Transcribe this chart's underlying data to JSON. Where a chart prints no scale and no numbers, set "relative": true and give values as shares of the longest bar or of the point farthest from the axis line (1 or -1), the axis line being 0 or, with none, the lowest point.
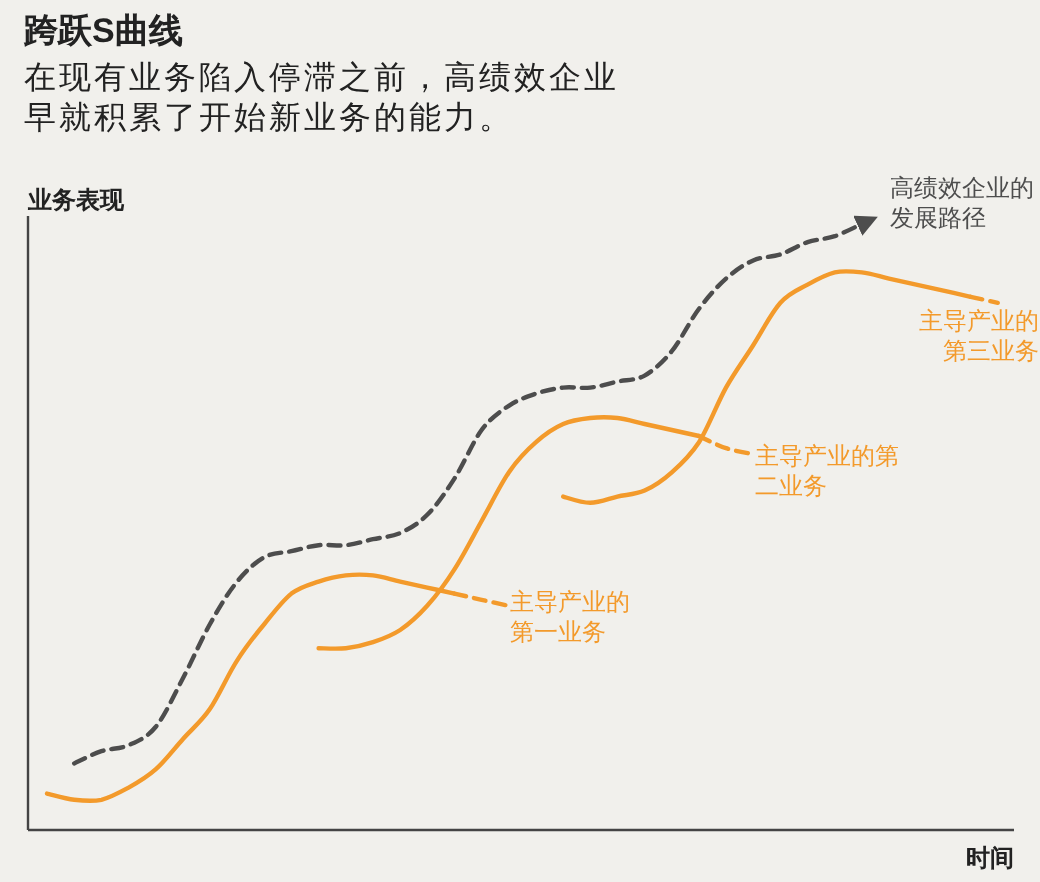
{
  "chart_data": {
    "type": "line",
    "relative": true,
    "title": "跨跃S曲线",
    "subtitle": "在现有业务陷入停滞之前，高绩效企业早就积累了开始新业务的能力。",
    "xlabel": "时间",
    "ylabel": "业务表现",
    "categories": [
      null,
      null,
      null,
      null,
      null,
      null,
      null,
      null,
      null,
      null,
      null,
      null,
      null,
      null,
      null,
      null,
      null,
      null,
      null,
      null,
      null,
      null,
      null,
      null,
      null,
      null,
      null,
      null,
      null,
      null,
      null,
      null,
      null,
      null,
      null,
      null
    ],
    "series": [
      {
        "name": "高绩效企业的发展路径",
        "color": "#4d4d4d",
        "line_style": "dashed",
        "values": [
          null,
          0.11,
          0.13,
          0.14,
          0.17,
          0.25,
          0.34,
          0.41,
          0.45,
          0.46,
          0.47,
          0.47,
          0.48,
          0.49,
          0.52,
          0.58,
          0.66,
          0.7,
          0.72,
          0.73,
          0.73,
          0.74,
          0.75,
          0.79,
          0.86,
          0.91,
          0.94,
          0.95,
          0.97,
          0.98,
          1.0,
          null,
          null,
          null,
          null,
          null
        ]
      },
      {
        "name": "主导产业的第一业务",
        "color": "#f39a2b",
        "line_style": "solid",
        "values": [
          0.06,
          0.05,
          0.05,
          0.07,
          0.1,
          0.15,
          0.2,
          0.28,
          0.34,
          0.39,
          0.41,
          0.42,
          0.42,
          0.41,
          0.4,
          0.39,
          null,
          null,
          null,
          null,
          null,
          null,
          null,
          null,
          null,
          null,
          null,
          null,
          null,
          null,
          null,
          null,
          null,
          null,
          null,
          null
        ]
      },
      {
        "color": "#f39a2b",
        "line_style": "dashed",
        "values": [
          null,
          null,
          null,
          null,
          null,
          null,
          null,
          null,
          null,
          null,
          null,
          null,
          null,
          null,
          null,
          0.39,
          0.38,
          0.37,
          null,
          null,
          null,
          null,
          null,
          null,
          null,
          null,
          null,
          null,
          null,
          null,
          null,
          null,
          null,
          null,
          null,
          null
        ]
      },
      {
        "name": "主导产业的第二业务",
        "color": "#f39a2b",
        "line_style": "solid",
        "values": [
          null,
          null,
          null,
          null,
          null,
          null,
          null,
          null,
          null,
          null,
          0.3,
          0.3,
          0.31,
          0.33,
          0.37,
          0.43,
          0.51,
          0.59,
          0.64,
          0.67,
          0.68,
          0.68,
          0.67,
          0.66,
          0.65,
          null,
          null,
          null,
          null,
          null,
          null,
          null,
          null,
          null,
          null,
          null
        ]
      },
      {
        "color": "#f39a2b",
        "line_style": "dashed",
        "values": [
          null,
          null,
          null,
          null,
          null,
          null,
          null,
          null,
          null,
          null,
          null,
          null,
          null,
          null,
          null,
          null,
          null,
          null,
          null,
          null,
          null,
          null,
          null,
          null,
          0.65,
          0.63,
          0.62,
          null,
          null,
          null,
          null,
          null,
          null,
          null,
          null,
          null
        ]
      },
      {
        "name": "主导产业的第三业务",
        "color": "#f39a2b",
        "line_style": "solid",
        "values": [
          null,
          null,
          null,
          null,
          null,
          null,
          null,
          null,
          null,
          null,
          null,
          null,
          null,
          null,
          null,
          null,
          null,
          null,
          null,
          0.55,
          0.54,
          0.55,
          0.56,
          0.59,
          0.64,
          0.73,
          0.8,
          0.87,
          0.9,
          0.92,
          0.92,
          0.91,
          0.9,
          0.89,
          0.88,
          null
        ]
      },
      {
        "color": "#f39a2b",
        "line_style": "dashed",
        "values": [
          null,
          null,
          null,
          null,
          null,
          null,
          null,
          null,
          null,
          null,
          null,
          null,
          null,
          null,
          null,
          null,
          null,
          null,
          null,
          null,
          null,
          null,
          null,
          null,
          null,
          null,
          null,
          null,
          null,
          null,
          null,
          null,
          null,
          null,
          0.88,
          0.87
        ]
      }
    ]
  }
}
